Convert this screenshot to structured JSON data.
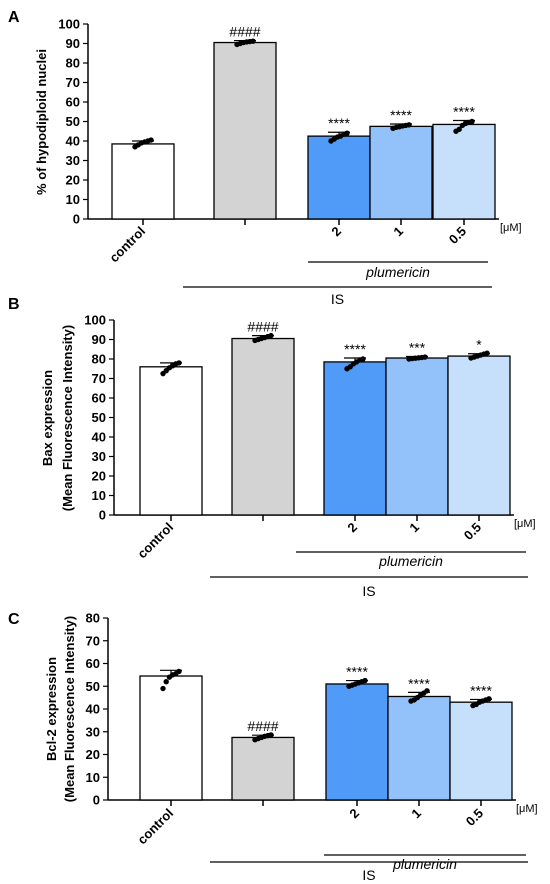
{
  "chart_data": [
    {
      "panel": "A",
      "type": "bar",
      "ylabel": "% of hypodiploid nuclei",
      "ylim": [
        0,
        100
      ],
      "ytick_step": 10,
      "categories": [
        "control",
        "",
        "2",
        "1",
        "0.5"
      ],
      "values": [
        38.5,
        90.5,
        42.5,
        47.5,
        48.5
      ],
      "errors": [
        1.5,
        1.0,
        2.0,
        1.2,
        2.0
      ],
      "annotations": [
        "",
        "####",
        "****",
        "****",
        "****"
      ],
      "points": [
        [
          37,
          38,
          39,
          39.5,
          40,
          40.5
        ],
        [
          89.5,
          90,
          90.5,
          90.8,
          91,
          91.2
        ],
        [
          40,
          41,
          42,
          42.5,
          43.5,
          44
        ],
        [
          46.5,
          47,
          47.3,
          47.7,
          48,
          48.3
        ],
        [
          45,
          46,
          48,
          49,
          49.5,
          50
        ]
      ],
      "colors": [
        "#ffffff",
        "#d3d3d3",
        "#4f9bf7",
        "#93c2fa",
        "#c6dffa"
      ],
      "unit_label": "[μM]",
      "group_label": "plumericin",
      "outer_label": "IS"
    },
    {
      "panel": "B",
      "type": "bar",
      "ylabel_lines": [
        "Bax expression",
        "(Mean Fluorescence Intensity)"
      ],
      "ylim": [
        0,
        100
      ],
      "ytick_step": 10,
      "categories": [
        "control",
        "",
        "2",
        "1",
        "0.5"
      ],
      "values": [
        76,
        90.5,
        78.5,
        80.5,
        81.5
      ],
      "errors": [
        2.0,
        1.5,
        2.0,
        0.8,
        1.2
      ],
      "annotations": [
        "",
        "####",
        "****",
        "***",
        "*"
      ],
      "points": [
        [
          72.5,
          74,
          75.5,
          76.5,
          77.5,
          78
        ],
        [
          89.5,
          90,
          90.5,
          91,
          91.5,
          92
        ],
        [
          75,
          76,
          77.5,
          78.5,
          79.5,
          80
        ],
        [
          80,
          80.2,
          80.4,
          80.6,
          80.8,
          81
        ],
        [
          80.5,
          81,
          81.5,
          82,
          82.5,
          83
        ]
      ],
      "colors": [
        "#ffffff",
        "#d3d3d3",
        "#4f9bf7",
        "#93c2fa",
        "#c6dffa"
      ],
      "unit_label": "[μM]",
      "group_label": "plumericin",
      "outer_label": "IS"
    },
    {
      "panel": "C",
      "type": "bar",
      "ylabel_lines": [
        "Bcl-2 expression",
        "(Mean Fluorescence Intensity)"
      ],
      "ylim": [
        0,
        80
      ],
      "ytick_step": 10,
      "categories": [
        "control",
        "",
        "2",
        "1",
        "0.5"
      ],
      "values": [
        54.5,
        27.5,
        51,
        45.5,
        43
      ],
      "errors": [
        2.5,
        1.0,
        1.5,
        1.8,
        1.2
      ],
      "annotations": [
        "",
        "####",
        "****",
        "****",
        "****"
      ],
      "points": [
        [
          49,
          52,
          54,
          55,
          55.5,
          56.5
        ],
        [
          26.5,
          27,
          27.5,
          28,
          28.3,
          28.6
        ],
        [
          50,
          50.5,
          51,
          51.5,
          52,
          52.5
        ],
        [
          43.5,
          44,
          45,
          46,
          47,
          48
        ],
        [
          41.5,
          42,
          43,
          43.5,
          44,
          44.5
        ]
      ],
      "colors": [
        "#ffffff",
        "#d3d3d3",
        "#4f9bf7",
        "#93c2fa",
        "#c6dffa"
      ],
      "unit_label": "[μM]",
      "group_label": "plumericin",
      "outer_label": "IS"
    }
  ]
}
